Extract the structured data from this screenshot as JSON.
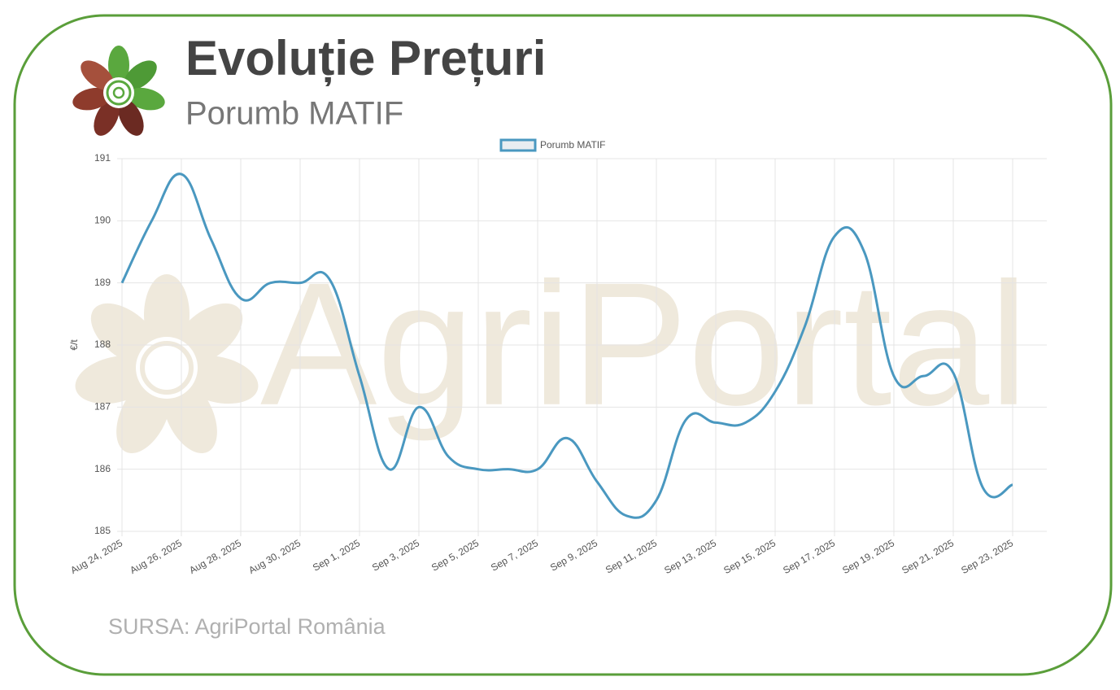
{
  "chart_data": {
    "type": "line",
    "title": "Evoluție Prețuri",
    "subtitle": "Porumb MATIF",
    "source": "SURSA: AgriPortal România",
    "watermark": "AgriPortal",
    "y_label": "€/t",
    "categories": [
      "Aug 24, 2025",
      null,
      "Aug 26, 2025",
      null,
      "Aug 28, 2025",
      null,
      "Aug 30, 2025",
      null,
      "Sep 1, 2025",
      null,
      "Sep 3, 2025",
      null,
      "Sep 5, 2025",
      null,
      "Sep 7, 2025",
      null,
      "Sep 9, 2025",
      null,
      "Sep 11, 2025",
      null,
      "Sep 13, 2025",
      null,
      "Sep 15, 2025",
      null,
      "Sep 17, 2025",
      null,
      "Sep 19, 2025",
      null,
      "Sep 21, 2025",
      null,
      "Sep 23, 2025"
    ],
    "series": [
      {
        "name": "Porumb MATIF",
        "color": "#4a98c0",
        "values": [
          189.0,
          190.0,
          190.75,
          189.7,
          188.75,
          189.0,
          189.0,
          189.05,
          187.5,
          186.0,
          187.0,
          186.2,
          186.0,
          186.0,
          186.0,
          186.5,
          185.8,
          185.25,
          185.5,
          186.8,
          186.75,
          186.75,
          187.25,
          188.3,
          189.75,
          189.5,
          187.5,
          187.5,
          187.55,
          185.7,
          185.75
        ]
      }
    ],
    "ylim": [
      185,
      191
    ],
    "yticks": [
      185,
      186,
      187,
      188,
      189,
      190,
      191
    ],
    "grid": true,
    "legend": "top"
  }
}
